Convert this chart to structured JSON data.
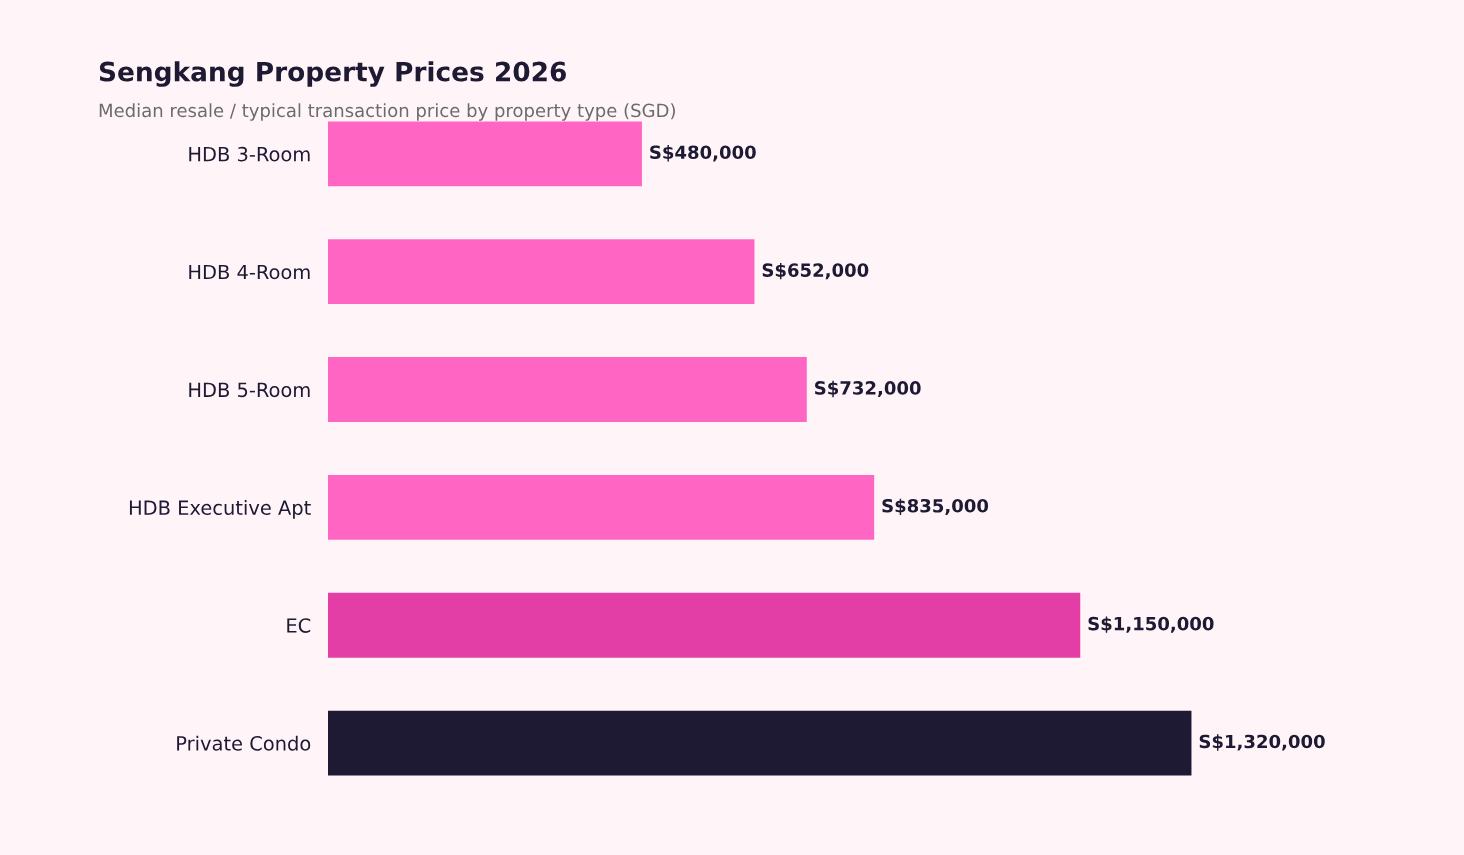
{
  "chart_data": {
    "type": "bar",
    "orientation": "horizontal",
    "title": "Sengkang Property Prices 2026",
    "subtitle": "Median resale / typical transaction price by property type (SGD)",
    "categories": [
      "HDB 3-Room",
      "HDB 4-Room",
      "HDB 5-Room",
      "HDB Executive Apt",
      "EC",
      "Private Condo"
    ],
    "values": [
      480000,
      652000,
      732000,
      835000,
      1150000,
      1320000
    ],
    "colors": [
      "#ff66c4",
      "#ff66c4",
      "#ff66c4",
      "#ff66c4",
      "#e23ea6",
      "#1e1a33"
    ],
    "value_labels": [
      "S$480,000",
      "S$652,000",
      "S$732,000",
      "S$835,000",
      "S$1,150,000",
      "S$1,320,000"
    ],
    "grid": false,
    "legend": false
  }
}
